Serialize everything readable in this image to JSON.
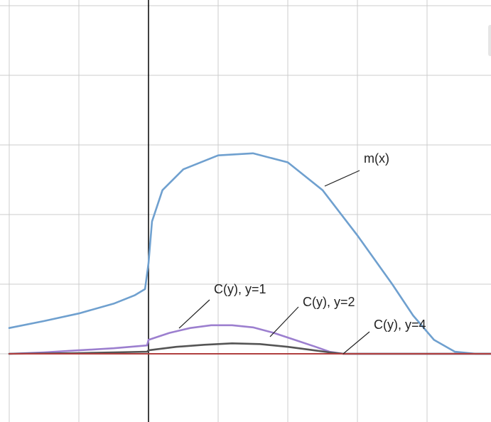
{
  "chart_data": {
    "type": "line",
    "title": "",
    "xlabel": "",
    "ylabel": "",
    "x_range": [
      -2,
      5
    ],
    "y_range": [
      -1,
      5
    ],
    "grid": true,
    "grid_color": "#cccccc",
    "axis_color": "#000000",
    "series": [
      {
        "name": "m(x)",
        "color": "#6fa0cf",
        "points": [
          [
            -2.0,
            0.37
          ],
          [
            -1.5,
            0.47
          ],
          [
            -1.0,
            0.58
          ],
          [
            -0.5,
            0.72
          ],
          [
            -0.2,
            0.84
          ],
          [
            -0.05,
            0.93
          ],
          [
            0.0,
            1.3
          ],
          [
            0.05,
            1.9
          ],
          [
            0.2,
            2.35
          ],
          [
            0.5,
            2.65
          ],
          [
            1.0,
            2.85
          ],
          [
            1.5,
            2.88
          ],
          [
            2.0,
            2.75
          ],
          [
            2.5,
            2.35
          ],
          [
            3.0,
            1.7
          ],
          [
            3.5,
            1.0
          ],
          [
            3.8,
            0.55
          ],
          [
            4.1,
            0.2
          ],
          [
            4.4,
            0.03
          ],
          [
            4.7,
            0.0
          ],
          [
            5.0,
            0.0
          ]
        ]
      },
      {
        "name": "C(y), y=1",
        "color": "#9c7fcf",
        "points": [
          [
            -2.0,
            0.0
          ],
          [
            -1.5,
            0.02
          ],
          [
            -1.0,
            0.05
          ],
          [
            -0.5,
            0.08
          ],
          [
            -0.02,
            0.12
          ],
          [
            0.0,
            0.2
          ],
          [
            0.3,
            0.3
          ],
          [
            0.6,
            0.37
          ],
          [
            0.9,
            0.41
          ],
          [
            1.2,
            0.41
          ],
          [
            1.5,
            0.38
          ],
          [
            1.8,
            0.3
          ],
          [
            2.1,
            0.2
          ],
          [
            2.4,
            0.1
          ],
          [
            2.6,
            0.03
          ],
          [
            2.8,
            0.0
          ],
          [
            5.0,
            0.0
          ]
        ]
      },
      {
        "name": "C(y), y=2",
        "color": "#555555",
        "points": [
          [
            -2.0,
            0.0
          ],
          [
            -1.0,
            0.01
          ],
          [
            -0.5,
            0.02
          ],
          [
            -0.02,
            0.03
          ],
          [
            0.0,
            0.05
          ],
          [
            0.4,
            0.1
          ],
          [
            0.8,
            0.13
          ],
          [
            1.2,
            0.15
          ],
          [
            1.6,
            0.14
          ],
          [
            2.0,
            0.1
          ],
          [
            2.3,
            0.06
          ],
          [
            2.6,
            0.02
          ],
          [
            2.8,
            0.0
          ],
          [
            5.0,
            0.0
          ]
        ]
      },
      {
        "name": "C(y), y=4",
        "color": "#b04040",
        "points": [
          [
            -2.0,
            0.0
          ],
          [
            5.0,
            0.0
          ]
        ]
      }
    ],
    "annotations": [
      {
        "text": "m(x)",
        "series": 0
      },
      {
        "text": "C(y), y=1",
        "series": 1
      },
      {
        "text": "C(y), y=2",
        "series": 2
      },
      {
        "text": "C(y), y=4",
        "series": 3
      }
    ]
  }
}
